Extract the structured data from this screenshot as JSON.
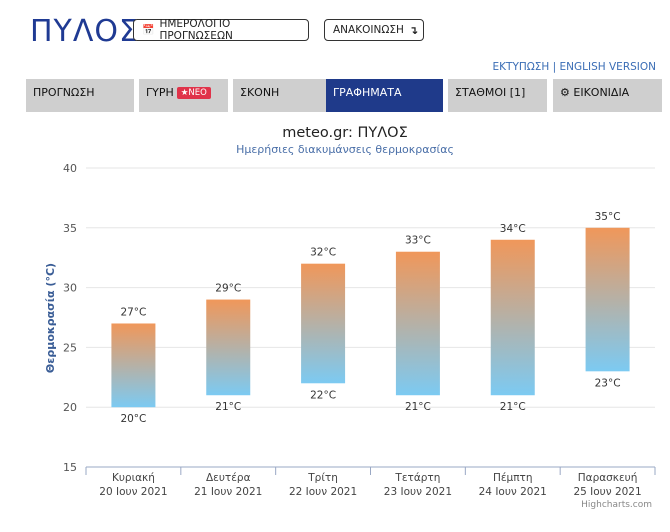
{
  "header": {
    "city": "ΠΥΛΟΣ",
    "calendar_button": "ΗΜΕΡΟΛΟΓΙΟ ΠΡΟΓΝΩΣΕΩΝ",
    "calendar_icon": "calendar-icon",
    "announcement_button": "ΑΝΑΚΟΙΝΩΣΗ",
    "announcement_icon": "arrow-down-icon",
    "print_link": "ΕΚΤΥΠΩΣΗ",
    "separator": " | ",
    "english_link": "ENGLISH VERSION"
  },
  "tabs": [
    {
      "label": "ΠΡΟΓΝΩΣΗ"
    },
    {
      "label": "ΓΥΡΗ",
      "badge": "ΝΕΟ",
      "badge_icon": "star-icon"
    },
    {
      "label": "ΣΚΟΝΗ"
    },
    {
      "label": "ΓΡΑΦΗΜΑΤΑ",
      "active": true
    },
    {
      "label": "ΣΤΑΘΜΟΙ [1]"
    },
    {
      "label": "ΕΙΚΟΝΙΔΙΑ",
      "icon": "gear-icon"
    }
  ],
  "colors": {
    "brand": "#1f3a93",
    "active_tab": "#1f3a8a",
    "bar_top": "#f0975a",
    "bar_bottom": "#7ccaf2",
    "badge": "#e0334a"
  },
  "chart_data": {
    "type": "bar",
    "title": "meteo.gr: ΠΥΛΟΣ",
    "subtitle": "Ημερήσιες διακυμάνσεις θερμοκρασίας",
    "ylabel": "Θερμοκρασία (°C)",
    "ylim": [
      15,
      40
    ],
    "yticks": [
      15,
      20,
      25,
      30,
      35,
      40
    ],
    "grid": true,
    "unit": "°C",
    "categories": [
      {
        "day": "Κυριακή",
        "date": "20 Ιουν 2021"
      },
      {
        "day": "Δευτέρα",
        "date": "21 Ιουν 2021"
      },
      {
        "day": "Τρίτη",
        "date": "22 Ιουν 2021"
      },
      {
        "day": "Τετάρτη",
        "date": "23 Ιουν 2021"
      },
      {
        "day": "Πέμπτη",
        "date": "24 Ιουν 2021"
      },
      {
        "day": "Παρασκευή",
        "date": "25 Ιουν 2021"
      }
    ],
    "series": [
      {
        "low": [
          20,
          21,
          22,
          21,
          21,
          23
        ],
        "high": [
          27,
          29,
          32,
          33,
          34,
          35
        ]
      }
    ],
    "data_labels": {
      "low": [
        "20°C",
        "21°C",
        "22°C",
        "21°C",
        "21°C",
        "23°C"
      ],
      "high": [
        "27°C",
        "29°C",
        "32°C",
        "33°C",
        "34°C",
        "35°C"
      ]
    },
    "credits": "Highcharts.com"
  }
}
